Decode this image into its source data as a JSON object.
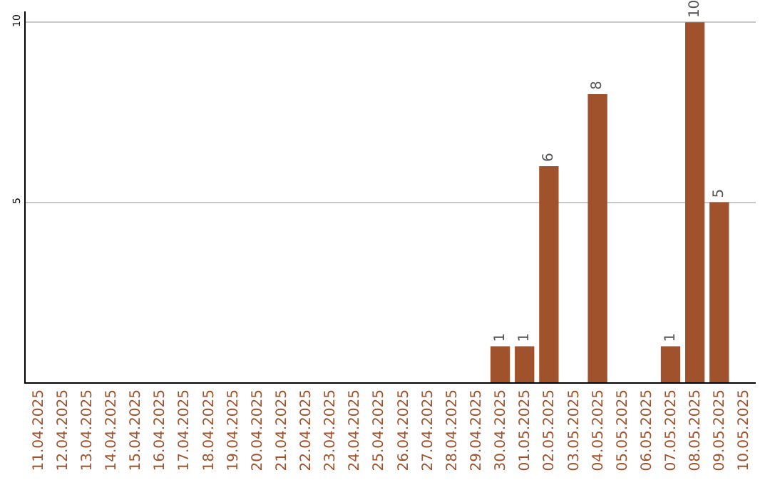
{
  "chart_data": {
    "type": "bar",
    "categories": [
      "11.04.2025",
      "12.04.2025",
      "13.04.2025",
      "14.04.2025",
      "15.04.2025",
      "16.04.2025",
      "17.04.2025",
      "18.04.2025",
      "19.04.2025",
      "20.04.2025",
      "21.04.2025",
      "22.04.2025",
      "23.04.2025",
      "24.04.2025",
      "25.04.2025",
      "26.04.2025",
      "27.04.2025",
      "28.04.2025",
      "29.04.2025",
      "30.04.2025",
      "01.05.2025",
      "02.05.2025",
      "03.05.2025",
      "04.05.2025",
      "05.05.2025",
      "06.05.2025",
      "07.05.2025",
      "08.05.2025",
      "09.05.2025",
      "10.05.2025"
    ],
    "values": [
      0,
      0,
      0,
      0,
      0,
      0,
      0,
      0,
      0,
      0,
      0,
      0,
      0,
      0,
      0,
      0,
      0,
      0,
      0,
      1,
      1,
      6,
      0,
      8,
      0,
      0,
      1,
      10,
      5,
      0
    ],
    "value_labels": [
      null,
      null,
      null,
      null,
      null,
      null,
      null,
      null,
      null,
      null,
      null,
      null,
      null,
      null,
      null,
      null,
      null,
      null,
      null,
      "1",
      "1",
      "6",
      null,
      "8",
      null,
      null,
      "1",
      "10",
      "5",
      null
    ],
    "color": "#a0522d",
    "ylim": [
      0,
      10.3
    ],
    "yticks": [
      5,
      10
    ],
    "grid": "y",
    "legend": false
  }
}
